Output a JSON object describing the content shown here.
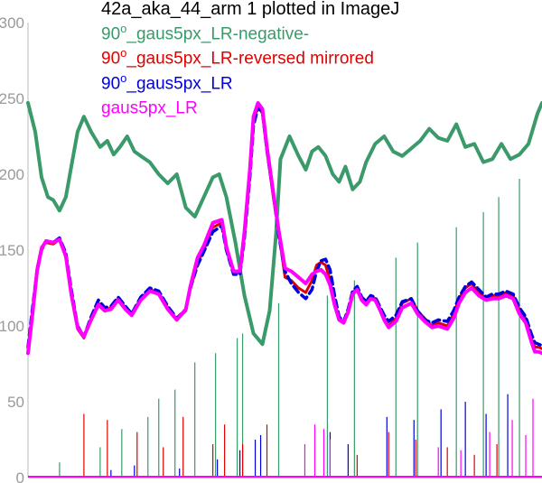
{
  "chart_data": {
    "type": "line",
    "title": "42a_aka_44_arm 1 plotted in ImageJ",
    "xlabel": "",
    "ylabel": "",
    "xlim": [
      0,
      570
    ],
    "ylim": [
      0,
      300
    ],
    "y_ticks": [
      "0",
      "50",
      "100",
      "150",
      "200",
      "250",
      "300"
    ],
    "grid": false,
    "legend_position": "top",
    "series": [
      {
        "name": "90o_gaus5px_LR-negative-",
        "label_prefix": "90",
        "label_sup": "o",
        "label_suffix": "_gaus5px_LR-negative-",
        "color": "#3a9a6a",
        "x": [
          0,
          8,
          15,
          22,
          28,
          35,
          42,
          48,
          55,
          62,
          70,
          80,
          88,
          95,
          102,
          110,
          118,
          125,
          135,
          145,
          155,
          165,
          175,
          185,
          195,
          205,
          212,
          220,
          230,
          240,
          250,
          260,
          268,
          275,
          280,
          290,
          300,
          308,
          315,
          322,
          330,
          338,
          345,
          352,
          360,
          368,
          375,
          385,
          395,
          405,
          415,
          425,
          435,
          445,
          455,
          465,
          475,
          485,
          495,
          505,
          515,
          525,
          535,
          545,
          555,
          565,
          570
        ],
        "values": [
          247,
          228,
          198,
          185,
          183,
          176,
          185,
          205,
          228,
          238,
          228,
          218,
          222,
          213,
          218,
          225,
          215,
          212,
          208,
          200,
          194,
          200,
          178,
          172,
          185,
          198,
          200,
          185,
          155,
          120,
          95,
          88,
          110,
          160,
          210,
          225,
          212,
          203,
          215,
          218,
          212,
          200,
          195,
          205,
          190,
          195,
          208,
          220,
          225,
          215,
          212,
          217,
          222,
          230,
          224,
          222,
          233,
          218,
          220,
          208,
          210,
          220,
          210,
          213,
          220,
          240,
          247
        ],
        "spikes": [
          [
            35,
            10
          ],
          [
            80,
            20
          ],
          [
            104,
            32
          ],
          [
            133,
            40
          ],
          [
            145,
            52
          ],
          [
            163,
            58
          ],
          [
            185,
            76
          ],
          [
            208,
            82
          ],
          [
            232,
            92
          ],
          [
            238,
            95
          ],
          [
            278,
            115
          ],
          [
            332,
            120
          ],
          [
            362,
            130
          ],
          [
            408,
            145
          ],
          [
            432,
            155
          ],
          [
            475,
            165
          ],
          [
            505,
            175
          ],
          [
            522,
            185
          ],
          [
            545,
            197
          ]
        ]
      },
      {
        "name": "90o_gaus5px_LR-reversed mirrored",
        "label_prefix": "90",
        "label_sup": "o",
        "label_suffix": "_gaus5px_LR-reversed mirrored",
        "color": "#e00000",
        "x": [
          0,
          5,
          10,
          15,
          20,
          28,
          35,
          42,
          48,
          55,
          62,
          70,
          78,
          85,
          92,
          100,
          108,
          115,
          125,
          135,
          145,
          155,
          165,
          175,
          180,
          188,
          195,
          205,
          215,
          220,
          228,
          235,
          240,
          246,
          250,
          255,
          260,
          265,
          272,
          278,
          285,
          292,
          300,
          308,
          315,
          320,
          325,
          330,
          335,
          340,
          345,
          350,
          355,
          360,
          365,
          370,
          375,
          380,
          385,
          390,
          395,
          400,
          408,
          415,
          425,
          432,
          440,
          448,
          455,
          465,
          472,
          478,
          485,
          492,
          500,
          508,
          515,
          522,
          530,
          538,
          545,
          552,
          558,
          562,
          566,
          570
        ],
        "values": [
          83,
          110,
          138,
          152,
          155,
          154,
          157,
          145,
          120,
          98,
          92,
          105,
          115,
          110,
          112,
          118,
          112,
          108,
          118,
          124,
          122,
          112,
          104,
          110,
          124,
          142,
          150,
          165,
          168,
          150,
          135,
          135,
          160,
          200,
          235,
          245,
          240,
          215,
          185,
          162,
          132,
          130,
          125,
          122,
          130,
          140,
          142,
          140,
          130,
          115,
          105,
          102,
          110,
          122,
          125,
          118,
          115,
          120,
          118,
          112,
          105,
          100,
          105,
          115,
          118,
          110,
          105,
          100,
          102,
          100,
          108,
          118,
          125,
          128,
          122,
          118,
          120,
          120,
          122,
          120,
          110,
          105,
          92,
          86,
          86,
          85
        ],
        "spikes": [
          [
            62,
            42
          ],
          [
            88,
            38
          ],
          [
            121,
            30
          ],
          [
            150,
            20
          ],
          [
            172,
            40
          ],
          [
            205,
            22
          ],
          [
            218,
            35
          ],
          [
            238,
            22
          ],
          [
            265,
            35
          ],
          [
            365,
            15
          ],
          [
            400,
            30
          ],
          [
            430,
            25
          ],
          [
            465,
            20
          ],
          [
            495,
            15
          ],
          [
            520,
            22
          ]
        ]
      },
      {
        "name": "90o_gaus5px_LR",
        "label_prefix": "90",
        "label_sup": "o",
        "label_suffix": "_gaus5px_LR",
        "color": "#0000dd",
        "x": [
          0,
          5,
          10,
          15,
          20,
          28,
          35,
          42,
          48,
          55,
          62,
          70,
          78,
          85,
          92,
          100,
          108,
          115,
          125,
          135,
          145,
          155,
          165,
          175,
          180,
          188,
          195,
          205,
          215,
          220,
          228,
          235,
          240,
          246,
          250,
          255,
          260,
          265,
          272,
          278,
          285,
          292,
          300,
          308,
          315,
          320,
          325,
          330,
          335,
          340,
          345,
          350,
          355,
          360,
          365,
          370,
          375,
          380,
          385,
          390,
          395,
          400,
          408,
          415,
          425,
          432,
          440,
          448,
          455,
          465,
          472,
          478,
          485,
          492,
          500,
          508,
          515,
          522,
          530,
          538,
          545,
          552,
          558,
          562,
          566,
          570
        ],
        "values": [
          86,
          112,
          136,
          150,
          156,
          155,
          158,
          148,
          124,
          100,
          93,
          106,
          117,
          112,
          113,
          119,
          113,
          108,
          119,
          125,
          123,
          113,
          105,
          111,
          125,
          140,
          149,
          162,
          166,
          150,
          134,
          134,
          158,
          198,
          232,
          244,
          241,
          216,
          187,
          160,
          136,
          128,
          122,
          118,
          124,
          136,
          143,
          144,
          137,
          120,
          106,
          103,
          111,
          123,
          126,
          119,
          116,
          120,
          119,
          113,
          107,
          103,
          107,
          116,
          118,
          110,
          104,
          102,
          104,
          103,
          110,
          119,
          126,
          129,
          124,
          119,
          121,
          121,
          123,
          121,
          112,
          106,
          95,
          89,
          88,
          87
        ],
        "spikes": [
          [
            92,
            5
          ],
          [
            118,
            8
          ],
          [
            168,
            6
          ],
          [
            210,
            12
          ],
          [
            235,
            18
          ],
          [
            252,
            25
          ],
          [
            258,
            28
          ],
          [
            335,
            30
          ],
          [
            355,
            22
          ],
          [
            398,
            40
          ],
          [
            428,
            38
          ],
          [
            458,
            45
          ],
          [
            485,
            50
          ],
          [
            508,
            42
          ],
          [
            532,
            55
          ]
        ]
      },
      {
        "name": "gaus5px_LR",
        "label_prefix": "",
        "label_sup": "",
        "label_suffix": "gaus5px_LR",
        "color": "#ff00ff",
        "x": [
          0,
          5,
          10,
          15,
          20,
          28,
          35,
          42,
          48,
          55,
          62,
          70,
          78,
          85,
          92,
          100,
          108,
          115,
          125,
          135,
          145,
          155,
          165,
          175,
          180,
          188,
          195,
          205,
          215,
          220,
          228,
          235,
          240,
          246,
          250,
          255,
          260,
          265,
          272,
          278,
          285,
          292,
          300,
          308,
          315,
          320,
          325,
          330,
          335,
          340,
          345,
          350,
          355,
          360,
          365,
          370,
          375,
          380,
          385,
          390,
          395,
          400,
          408,
          415,
          425,
          432,
          440,
          448,
          455,
          465,
          472,
          478,
          485,
          492,
          500,
          508,
          515,
          522,
          530,
          538,
          545,
          552,
          558,
          562,
          566,
          570
        ],
        "values": [
          82,
          108,
          136,
          151,
          156,
          155,
          157,
          146,
          121,
          99,
          93,
          104,
          114,
          110,
          111,
          117,
          111,
          107,
          117,
          123,
          121,
          111,
          104,
          111,
          126,
          145,
          153,
          168,
          170,
          152,
          136,
          136,
          162,
          203,
          238,
          247,
          243,
          218,
          188,
          163,
          138,
          136,
          132,
          128,
          134,
          136,
          137,
          134,
          127,
          114,
          104,
          102,
          109,
          121,
          124,
          117,
          114,
          118,
          117,
          111,
          104,
          99,
          103,
          112,
          115,
          108,
          103,
          99,
          100,
          98,
          105,
          115,
          122,
          125,
          120,
          117,
          118,
          118,
          120,
          118,
          108,
          102,
          90,
          83,
          83,
          82
        ],
        "spikes": [
          [
            307,
            22
          ],
          [
            318,
            35
          ],
          [
            328,
            32
          ],
          [
            335,
            25
          ],
          [
            455,
            20
          ],
          [
            480,
            18
          ],
          [
            512,
            30
          ],
          [
            537,
            38
          ],
          [
            552,
            28
          ],
          [
            560,
            52
          ]
        ]
      }
    ]
  }
}
